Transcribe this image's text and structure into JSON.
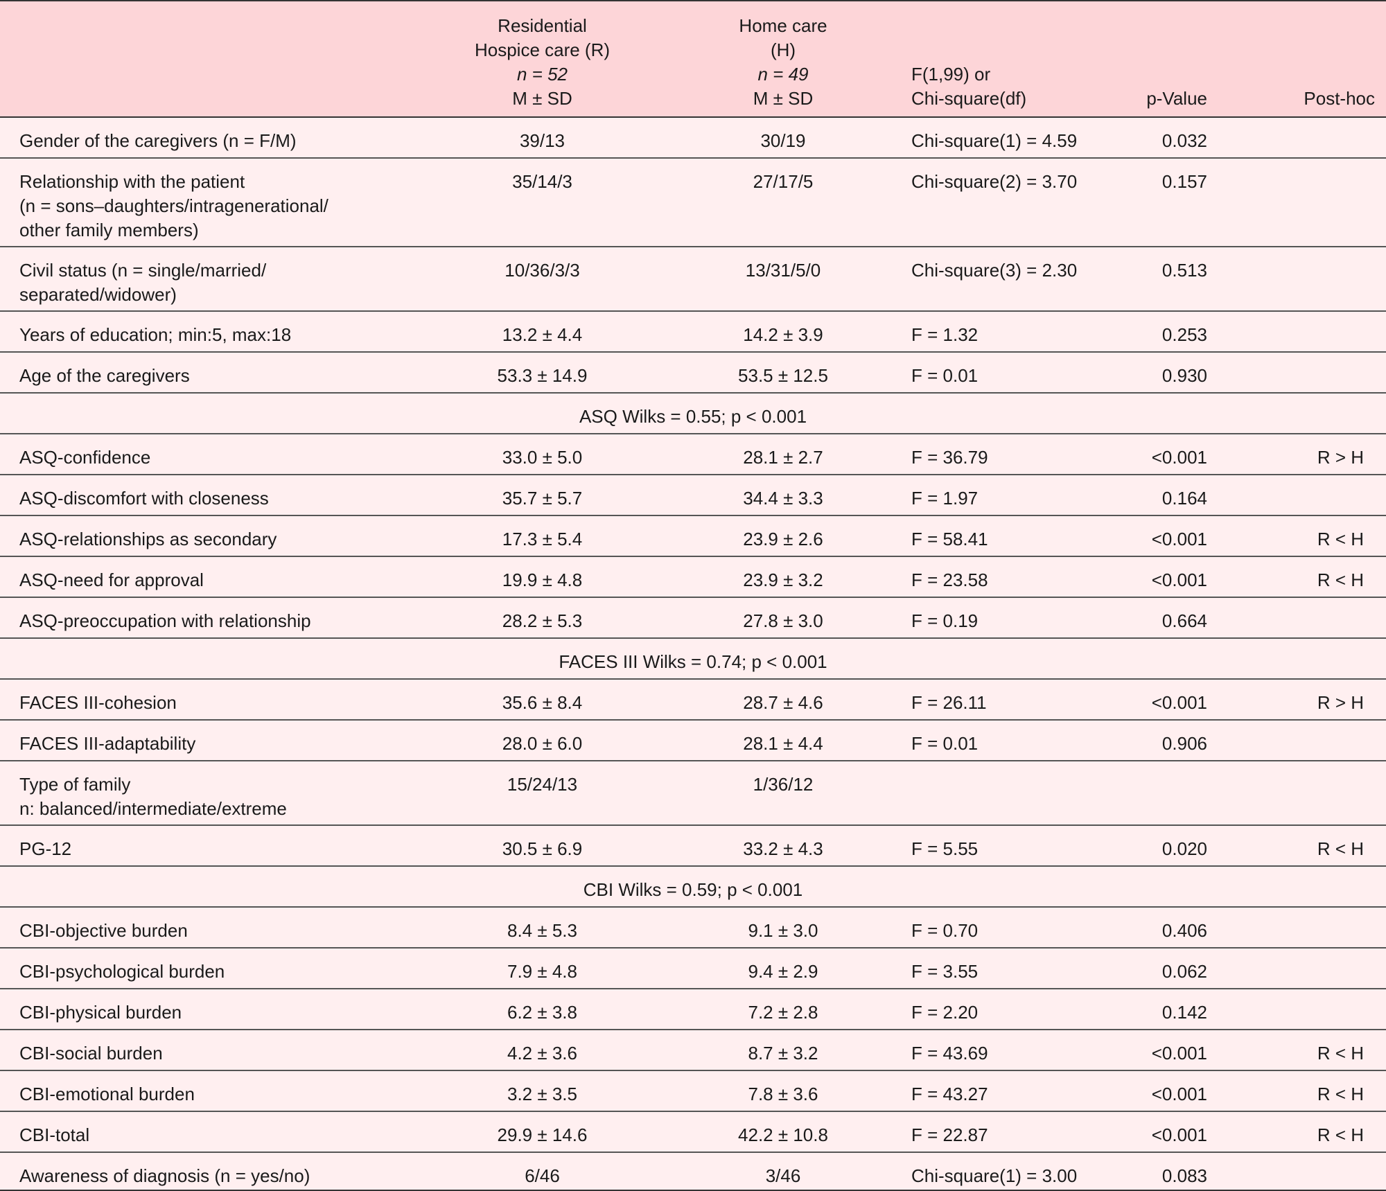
{
  "header": {
    "col1": "",
    "col2": [
      "Residential",
      "Hospice care (R)",
      "n = 52",
      "M ± SD"
    ],
    "col3": [
      "Home care",
      "(H)",
      "n = 49",
      "M ± SD"
    ],
    "col4": [
      "F(1,99) or",
      "Chi-square(df)"
    ],
    "col5": "p-Value",
    "col6": "Post-hoc"
  },
  "rows": [
    {
      "type": "row",
      "h": 59,
      "label": [
        "Gender of the caregivers (n = F/M)"
      ],
      "r": "39/13",
      "h_val": "30/19",
      "stat": "Chi-square(1) = 4.59",
      "p": "0.032",
      "post": ""
    },
    {
      "type": "row",
      "h": 128,
      "label": [
        "Relationship with the patient",
        "(n = sons–daughters/intragenerational/",
        "other family members)"
      ],
      "r": "35/14/3",
      "h_val": "27/17/5",
      "stat": "Chi-square(2) = 3.70",
      "p": "0.157",
      "post": ""
    },
    {
      "type": "row",
      "h": 93,
      "label": [
        "Civil status (n = single/married/",
        "separated/widower)"
      ],
      "r": "10/36/3/3",
      "h_val": "13/31/5/0",
      "stat": "Chi-square(3) = 2.30",
      "p": "0.513",
      "post": ""
    },
    {
      "type": "row",
      "h": 59,
      "label": [
        "Years of education; min:5, max:18"
      ],
      "r": "13.2 ± 4.4",
      "h_val": "14.2 ± 3.9",
      "stat": "F = 1.32",
      "p": "0.253",
      "post": ""
    },
    {
      "type": "row",
      "h": 59,
      "label": [
        "Age of the caregivers"
      ],
      "r": "53.3 ± 14.9",
      "h_val": "53.5 ± 12.5",
      "stat": "F = 0.01",
      "p": "0.930",
      "post": ""
    },
    {
      "type": "span",
      "h": 59,
      "text": "ASQ Wilks = 0.55; p < 0.001"
    },
    {
      "type": "row",
      "h": 59,
      "label": [
        "ASQ-confidence"
      ],
      "r": "33.0 ± 5.0",
      "h_val": "28.1 ± 2.7",
      "stat": "F = 36.79",
      "p": "<0.001",
      "post": "R > H"
    },
    {
      "type": "row",
      "h": 59,
      "label": [
        "ASQ-discomfort with closeness"
      ],
      "r": "35.7 ± 5.7",
      "h_val": "34.4 ± 3.3",
      "stat": "F = 1.97",
      "p": "0.164",
      "post": ""
    },
    {
      "type": "row",
      "h": 59,
      "label": [
        "ASQ-relationships as secondary"
      ],
      "r": "17.3 ± 5.4",
      "h_val": "23.9 ± 2.6",
      "stat": "F = 58.41",
      "p": "<0.001",
      "post": "R < H"
    },
    {
      "type": "row",
      "h": 59,
      "label": [
        "ASQ-need for approval"
      ],
      "r": "19.9 ± 4.8",
      "h_val": "23.9 ± 3.2",
      "stat": "F = 23.58",
      "p": "<0.001",
      "post": "R < H"
    },
    {
      "type": "row",
      "h": 59,
      "label": [
        "ASQ-preoccupation with relationship"
      ],
      "r": "28.2 ± 5.3",
      "h_val": "27.8 ± 3.0",
      "stat": "F = 0.19",
      "p": "0.664",
      "post": ""
    },
    {
      "type": "span",
      "h": 59,
      "text": "FACES III Wilks = 0.74; p < 0.001"
    },
    {
      "type": "row",
      "h": 59,
      "label": [
        "FACES III-cohesion"
      ],
      "r": "35.6 ± 8.4",
      "h_val": "28.7 ± 4.6",
      "stat": "F = 26.11",
      "p": "<0.001",
      "post": "R > H"
    },
    {
      "type": "row",
      "h": 59,
      "label": [
        "FACES III-adaptability"
      ],
      "r": "28.0 ± 6.0",
      "h_val": "28.1 ± 4.4",
      "stat": "F = 0.01",
      "p": "0.906",
      "post": ""
    },
    {
      "type": "row",
      "h": 93,
      "label": [
        "Type of family",
        "n: balanced/intermediate/extreme"
      ],
      "r": "15/24/13",
      "h_val": "1/36/12",
      "stat": "",
      "p": "",
      "post": ""
    },
    {
      "type": "row",
      "h": 59,
      "label": [
        "PG-12"
      ],
      "r": "30.5 ± 6.9",
      "h_val": "33.2 ± 4.3",
      "stat": "F = 5.55",
      "p": "0.020",
      "post": "R < H"
    },
    {
      "type": "span",
      "h": 59,
      "text": "CBI Wilks = 0.59; p < 0.001"
    },
    {
      "type": "row",
      "h": 59,
      "label": [
        "CBI-objective burden"
      ],
      "r": "8.4 ± 5.3",
      "h_val": "9.1 ± 3.0",
      "stat": "F = 0.70",
      "p": "0.406",
      "post": ""
    },
    {
      "type": "row",
      "h": 59,
      "label": [
        "CBI-psychological burden"
      ],
      "r": "7.9 ± 4.8",
      "h_val": "9.4 ± 2.9",
      "stat": "F = 3.55",
      "p": "0.062",
      "post": ""
    },
    {
      "type": "row",
      "h": 59,
      "label": [
        "CBI-physical burden"
      ],
      "r": "6.2 ± 3.8",
      "h_val": "7.2 ± 2.8",
      "stat": "F = 2.20",
      "p": "0.142",
      "post": ""
    },
    {
      "type": "row",
      "h": 59,
      "label": [
        "CBI-social burden"
      ],
      "r": "4.2 ± 3.6",
      "h_val": "8.7 ± 3.2",
      "stat": "F = 43.69",
      "p": "<0.001",
      "post": "R < H"
    },
    {
      "type": "row",
      "h": 59,
      "label": [
        "CBI-emotional burden"
      ],
      "r": "3.2 ± 3.5",
      "h_val": "7.8 ± 3.6",
      "stat": "F = 43.27",
      "p": "<0.001",
      "post": "R < H"
    },
    {
      "type": "row",
      "h": 59,
      "label": [
        "CBI-total"
      ],
      "r": "29.9 ± 14.6",
      "h_val": "42.2 ± 10.8",
      "stat": "F = 22.87",
      "p": "<0.001",
      "post": "R < H"
    },
    {
      "type": "row",
      "h": 55,
      "label": [
        "Awareness of diagnosis (n = yes/no)"
      ],
      "r": "6/46",
      "h_val": "3/46",
      "stat": "Chi-square(1) = 3.00",
      "p": "0.083",
      "post": ""
    }
  ],
  "colors": {
    "header_bg": "#fdd5d8",
    "row_bg": "#ffeff0",
    "rule": "#333333"
  }
}
